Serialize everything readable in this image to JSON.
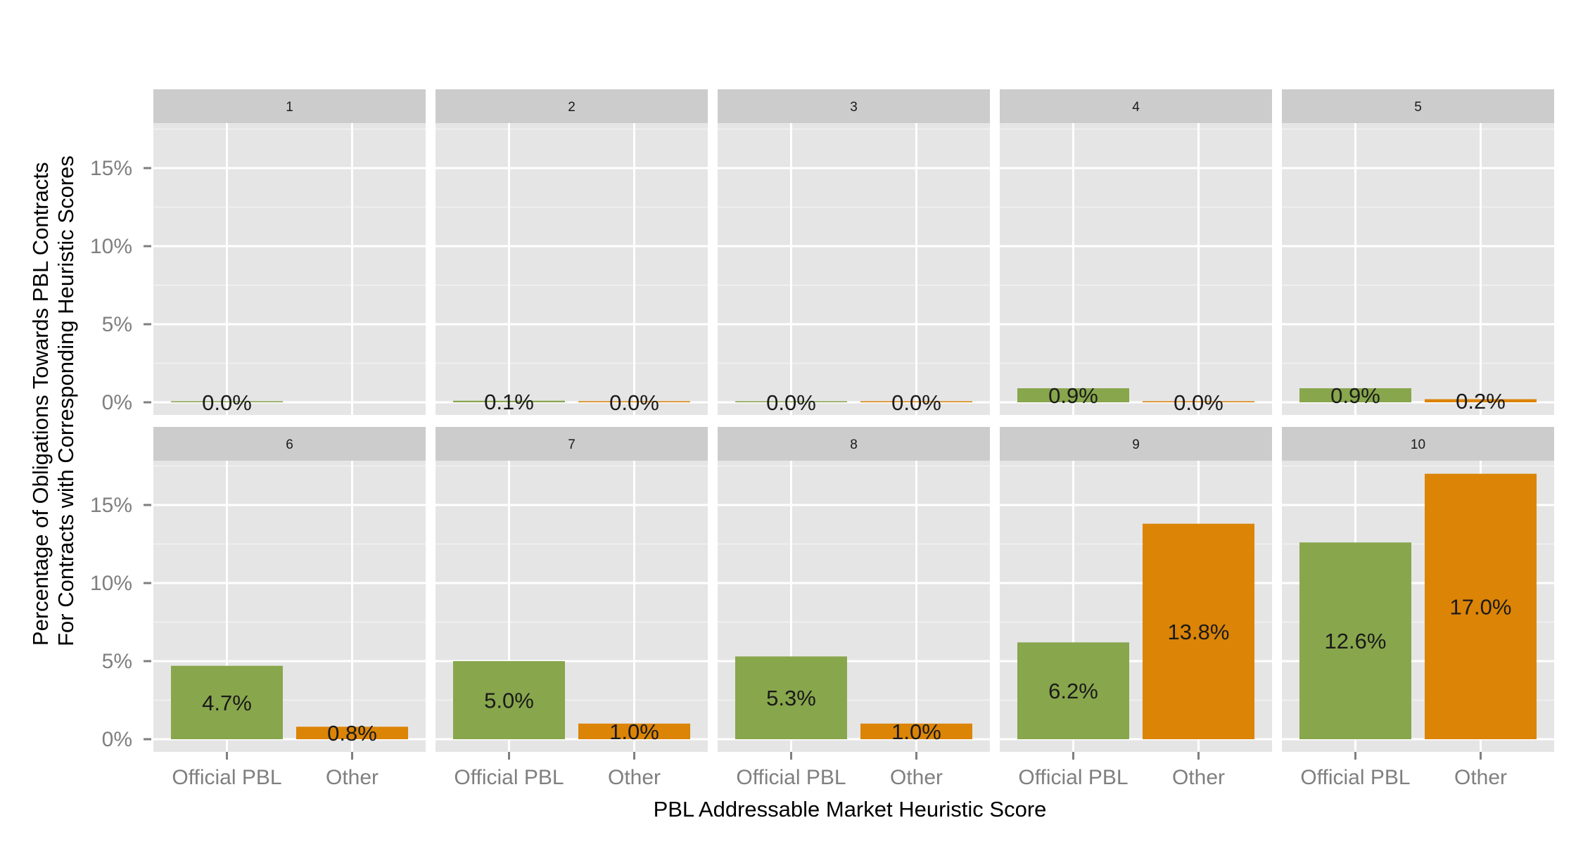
{
  "chart_data": {
    "type": "bar",
    "layout": "faceted",
    "xlabel": "PBL Addressable Market Heuristic Score",
    "ylabel_lines": [
      "Percentage of Obligations Towards PBL Contracts",
      "For Contracts with Corresponding Heuristic Scores"
    ],
    "categories": [
      "Official PBL",
      "Other"
    ],
    "ylim": [
      0,
      0.19
    ],
    "yticks": [
      0,
      0.05,
      0.1,
      0.15
    ],
    "ytick_labels": [
      "0%",
      "5%",
      "10%",
      "15%"
    ],
    "grid": true,
    "colors": {
      "Official PBL": "#88a64c",
      "Other": "#db8406"
    },
    "facets": [
      {
        "label": "1",
        "values": [
          0.0,
          null
        ],
        "labels": [
          "0.0%",
          ""
        ]
      },
      {
        "label": "2",
        "values": [
          0.001,
          0.0
        ],
        "labels": [
          "0.1%",
          "0.0%"
        ]
      },
      {
        "label": "3",
        "values": [
          0.0,
          0.0
        ],
        "labels": [
          "0.0%",
          "0.0%"
        ]
      },
      {
        "label": "4",
        "values": [
          0.009,
          0.0
        ],
        "labels": [
          "0.9%",
          "0.0%"
        ]
      },
      {
        "label": "5",
        "values": [
          0.009,
          0.002
        ],
        "labels": [
          "0.9%",
          "0.2%"
        ]
      },
      {
        "label": "6",
        "values": [
          0.047,
          0.008
        ],
        "labels": [
          "4.7%",
          "0.8%"
        ]
      },
      {
        "label": "7",
        "values": [
          0.05,
          0.01
        ],
        "labels": [
          "5.0%",
          "1.0%"
        ]
      },
      {
        "label": "8",
        "values": [
          0.053,
          0.01
        ],
        "labels": [
          "5.3%",
          "1.0%"
        ]
      },
      {
        "label": "9",
        "values": [
          0.062,
          0.138
        ],
        "labels": [
          "6.2%",
          "13.8%"
        ]
      },
      {
        "label": "10",
        "values": [
          0.126,
          0.17
        ],
        "labels": [
          "12.6%",
          "17.0%"
        ]
      }
    ]
  }
}
